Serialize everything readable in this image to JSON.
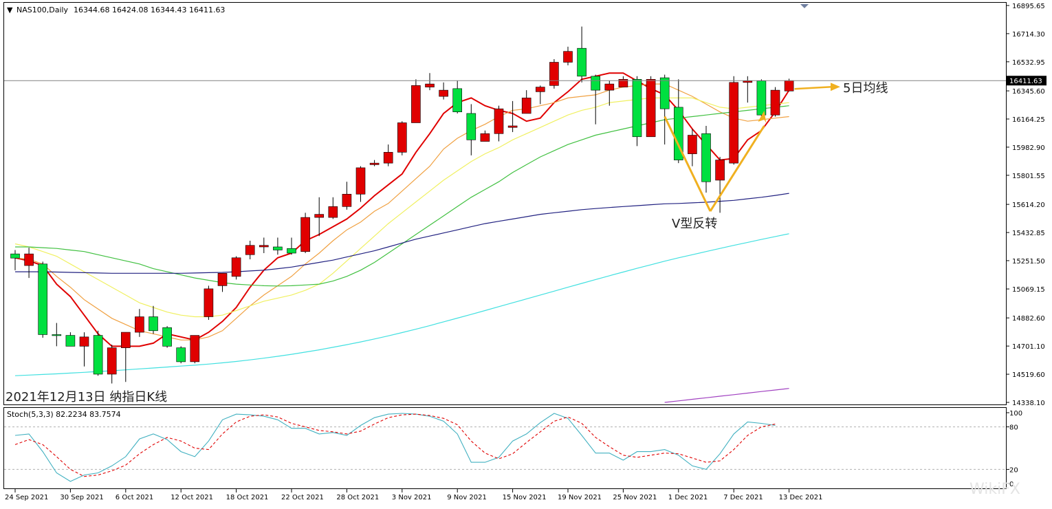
{
  "header": {
    "symbol": "NAS100,Daily",
    "ohlc": "16344.68 16424.08 16344.43 16411.63"
  },
  "annotations": {
    "ma_label": "5日均线",
    "reversal_label": "V型反转",
    "caption": "2021年12月13日 纳指日K线",
    "watermark": "WikiFX"
  },
  "colors": {
    "bull": "#00e040",
    "bear": "#e00000",
    "ma5": "#e00000",
    "ma10": "#f0a040",
    "ma20": "#f0f060",
    "ma50": "#40c040",
    "ma100": "#202080",
    "ma200": "#40e0e0",
    "ma_long": "#a040c0",
    "arrow": "#f0b020",
    "stoch_main": "#40b0c0",
    "stoch_signal": "#e00000"
  },
  "chart_data": [
    {
      "type": "candlestick",
      "title": "NAS100,Daily",
      "ylim": [
        14338.18,
        16895.65
      ],
      "y_ticks": [
        "16895.65",
        "16714.30",
        "16532.95",
        "16345.60",
        "16164.25",
        "15982.90",
        "15801.55",
        "15614.20",
        "15432.85",
        "15251.50",
        "15069.15",
        "14882.60",
        "14701.10",
        "14519.60",
        "14338.10"
      ],
      "current_price": "16411.63",
      "x_labels": [
        "24 Sep 2021",
        "30 Sep 2021",
        "6 Oct 2021",
        "12 Oct 2021",
        "18 Oct 2021",
        "22 Oct 2021",
        "28 Oct 2021",
        "3 Nov 2021",
        "9 Nov 2021",
        "15 Nov 2021",
        "19 Nov 2021",
        "25 Nov 2021",
        "1 Dec 2021",
        "7 Dec 2021",
        "13 Dec 2021"
      ],
      "candles": [
        {
          "o": 15295,
          "h": 15320,
          "l": 15190,
          "c": 15268
        },
        {
          "o": 15220,
          "h": 15335,
          "l": 15140,
          "c": 15295
        },
        {
          "o": 15230,
          "h": 15245,
          "l": 14755,
          "c": 14775
        },
        {
          "o": 14775,
          "h": 14850,
          "l": 14700,
          "c": 14770
        },
        {
          "o": 14770,
          "h": 14790,
          "l": 14700,
          "c": 14700
        },
        {
          "o": 14700,
          "h": 14790,
          "l": 14570,
          "c": 14760
        },
        {
          "o": 14770,
          "h": 14800,
          "l": 14510,
          "c": 14520
        },
        {
          "o": 14520,
          "h": 14710,
          "l": 14460,
          "c": 14690
        },
        {
          "o": 14690,
          "h": 14790,
          "l": 14470,
          "c": 14790
        },
        {
          "o": 14790,
          "h": 14940,
          "l": 14760,
          "c": 14890
        },
        {
          "o": 14890,
          "h": 14960,
          "l": 14780,
          "c": 14800
        },
        {
          "o": 14820,
          "h": 14830,
          "l": 14690,
          "c": 14700
        },
        {
          "o": 14690,
          "h": 14700,
          "l": 14590,
          "c": 14600
        },
        {
          "o": 14600,
          "h": 14770,
          "l": 14590,
          "c": 14770
        },
        {
          "o": 14890,
          "h": 15090,
          "l": 14870,
          "c": 15070
        },
        {
          "o": 15090,
          "h": 15170,
          "l": 15050,
          "c": 15170
        },
        {
          "o": 15150,
          "h": 15280,
          "l": 15130,
          "c": 15270
        },
        {
          "o": 15290,
          "h": 15380,
          "l": 15260,
          "c": 15350
        },
        {
          "o": 15340,
          "h": 15400,
          "l": 15300,
          "c": 15350
        },
        {
          "o": 15340,
          "h": 15400,
          "l": 15290,
          "c": 15320
        },
        {
          "o": 15330,
          "h": 15400,
          "l": 15290,
          "c": 15300
        },
        {
          "o": 15310,
          "h": 15560,
          "l": 15300,
          "c": 15530
        },
        {
          "o": 15530,
          "h": 15660,
          "l": 15410,
          "c": 15550
        },
        {
          "o": 15530,
          "h": 15660,
          "l": 15520,
          "c": 15600
        },
        {
          "o": 15600,
          "h": 15760,
          "l": 15580,
          "c": 15680
        },
        {
          "o": 15680,
          "h": 15860,
          "l": 15630,
          "c": 15850
        },
        {
          "o": 15870,
          "h": 15900,
          "l": 15860,
          "c": 15880
        },
        {
          "o": 15880,
          "h": 16000,
          "l": 15860,
          "c": 15950
        },
        {
          "o": 15950,
          "h": 16150,
          "l": 15930,
          "c": 16140
        },
        {
          "o": 16140,
          "h": 16420,
          "l": 16140,
          "c": 16380
        },
        {
          "o": 16370,
          "h": 16460,
          "l": 16350,
          "c": 16390
        },
        {
          "o": 16310,
          "h": 16400,
          "l": 16290,
          "c": 16350
        },
        {
          "o": 16360,
          "h": 16410,
          "l": 16200,
          "c": 16210
        },
        {
          "o": 16200,
          "h": 16260,
          "l": 15930,
          "c": 16030
        },
        {
          "o": 16020,
          "h": 16090,
          "l": 16020,
          "c": 16070
        },
        {
          "o": 16070,
          "h": 16250,
          "l": 16020,
          "c": 16230
        },
        {
          "o": 16110,
          "h": 16280,
          "l": 16080,
          "c": 16120
        },
        {
          "o": 16200,
          "h": 16350,
          "l": 16200,
          "c": 16300
        },
        {
          "o": 16340,
          "h": 16380,
          "l": 16260,
          "c": 16370
        },
        {
          "o": 16380,
          "h": 16550,
          "l": 16360,
          "c": 16530
        },
        {
          "o": 16530,
          "h": 16630,
          "l": 16510,
          "c": 16600
        },
        {
          "o": 16620,
          "h": 16760,
          "l": 16400,
          "c": 16440
        },
        {
          "o": 16440,
          "h": 16450,
          "l": 16130,
          "c": 16350
        },
        {
          "o": 16350,
          "h": 16410,
          "l": 16250,
          "c": 16390
        },
        {
          "o": 16370,
          "h": 16440,
          "l": 16370,
          "c": 16420
        },
        {
          "o": 16420,
          "h": 16440,
          "l": 15990,
          "c": 16050
        },
        {
          "o": 16050,
          "h": 16440,
          "l": 16050,
          "c": 16420
        },
        {
          "o": 16430,
          "h": 16450,
          "l": 16000,
          "c": 16230
        },
        {
          "o": 16240,
          "h": 16420,
          "l": 15880,
          "c": 15900
        },
        {
          "o": 15940,
          "h": 16100,
          "l": 15860,
          "c": 16060
        },
        {
          "o": 16070,
          "h": 16120,
          "l": 15690,
          "c": 15760
        },
        {
          "o": 15770,
          "h": 15920,
          "l": 15560,
          "c": 15900
        },
        {
          "o": 15880,
          "h": 16440,
          "l": 15870,
          "c": 16400
        },
        {
          "o": 16400,
          "h": 16440,
          "l": 16270,
          "c": 16410
        },
        {
          "o": 16410,
          "h": 16420,
          "l": 16170,
          "c": 16190
        },
        {
          "o": 16190,
          "h": 16370,
          "l": 16180,
          "c": 16350
        },
        {
          "o": 16344.68,
          "h": 16424.08,
          "l": 16344.43,
          "c": 16411.63
        }
      ],
      "series": [
        {
          "id": "ma5",
          "values": [
            15270,
            15250,
            15220,
            15100,
            15020,
            14900,
            14780,
            14700,
            14700,
            14700,
            14720,
            14780,
            14760,
            14740,
            14790,
            14860,
            14950,
            15080,
            15190,
            15270,
            15300,
            15380,
            15420,
            15470,
            15520,
            15590,
            15670,
            15740,
            15810,
            15950,
            16070,
            16200,
            16270,
            16300,
            16250,
            16220,
            16200,
            16150,
            16170,
            16270,
            16340,
            16420,
            16440,
            16460,
            16460,
            16410,
            16360,
            16320,
            16220,
            16100,
            16000,
            15900,
            15910,
            16030,
            16090,
            16210,
            16350
          ]
        },
        {
          "id": "ma10",
          "values": [
            15270,
            15260,
            15230,
            15150,
            15080,
            15000,
            14940,
            14880,
            14840,
            14800,
            14780,
            14760,
            14740,
            14740,
            14760,
            14800,
            14880,
            14960,
            15030,
            15090,
            15150,
            15230,
            15300,
            15380,
            15450,
            15500,
            15570,
            15620,
            15700,
            15780,
            15860,
            15970,
            16040,
            16090,
            16130,
            16180,
            16220,
            16230,
            16250,
            16270,
            16300,
            16310,
            16320,
            16350,
            16370,
            16380,
            16390,
            16390,
            16350,
            16310,
            16260,
            16210,
            16170,
            16150,
            16160,
            16170,
            16180
          ]
        },
        {
          "id": "ma20",
          "values": [
            15360,
            15340,
            15310,
            15280,
            15230,
            15180,
            15130,
            15080,
            15030,
            14980,
            14950,
            14920,
            14900,
            14890,
            14890,
            14900,
            14930,
            14960,
            14990,
            15010,
            15030,
            15060,
            15100,
            15170,
            15250,
            15330,
            15410,
            15490,
            15560,
            15630,
            15700,
            15770,
            15830,
            15890,
            15940,
            15980,
            16030,
            16070,
            16110,
            16150,
            16190,
            16220,
            16240,
            16270,
            16280,
            16290,
            16300,
            16300,
            16300,
            16300,
            16270,
            16240,
            16230,
            16240,
            16250,
            16260,
            16270
          ]
        },
        {
          "id": "ma50",
          "values": [
            15340,
            15340,
            15335,
            15330,
            15320,
            15310,
            15290,
            15270,
            15250,
            15230,
            15200,
            15180,
            15160,
            15140,
            15125,
            15110,
            15100,
            15095,
            15090,
            15088,
            15090,
            15095,
            15100,
            15120,
            15150,
            15190,
            15240,
            15300,
            15360,
            15420,
            15480,
            15540,
            15600,
            15660,
            15710,
            15760,
            15820,
            15870,
            15920,
            15960,
            16000,
            16030,
            16060,
            16080,
            16100,
            16120,
            16140,
            16160,
            16170,
            16180,
            16190,
            16200,
            16210,
            16220,
            16230,
            16240,
            16250
          ]
        },
        {
          "id": "ma100",
          "values": [
            15180,
            15180,
            15180,
            15178,
            15176,
            15174,
            15172,
            15170,
            15170,
            15170,
            15170,
            15170,
            15170,
            15172,
            15174,
            15176,
            15180,
            15185,
            15190,
            15200,
            15210,
            15225,
            15240,
            15255,
            15275,
            15295,
            15315,
            15340,
            15365,
            15390,
            15410,
            15430,
            15450,
            15470,
            15490,
            15505,
            15520,
            15535,
            15550,
            15560,
            15570,
            15580,
            15587,
            15594,
            15600,
            15606,
            15612,
            15618,
            15620,
            15624,
            15628,
            15634,
            15640,
            15650,
            15660,
            15672,
            15685
          ]
        },
        {
          "id": "ma200",
          "values": [
            14510,
            14514,
            14518,
            14522,
            14527,
            14532,
            14537,
            14542,
            14548,
            14554,
            14560,
            14566,
            14572,
            14578,
            14585,
            14593,
            14602,
            14612,
            14623,
            14635,
            14648,
            14662,
            14677,
            14693,
            14710,
            14728,
            14747,
            14767,
            14788,
            14810,
            14833,
            14857,
            14881,
            14905,
            14930,
            14955,
            14980,
            15005,
            15030,
            15055,
            15080,
            15105,
            15130,
            15154,
            15178,
            15202,
            15225,
            15248,
            15270,
            15290,
            15310,
            15330,
            15350,
            15369,
            15388,
            15407,
            15425
          ]
        },
        {
          "id": "ma_long",
          "values": [
            null,
            null,
            null,
            null,
            null,
            null,
            null,
            null,
            null,
            null,
            null,
            null,
            null,
            null,
            null,
            null,
            null,
            null,
            null,
            null,
            null,
            null,
            null,
            null,
            null,
            null,
            null,
            null,
            null,
            null,
            null,
            null,
            null,
            null,
            null,
            null,
            null,
            null,
            null,
            null,
            null,
            null,
            null,
            null,
            null,
            null,
            null,
            14338,
            14348,
            14358,
            14368,
            14378,
            14388,
            14398,
            14408,
            14418,
            14428
          ]
        }
      ]
    },
    {
      "type": "line",
      "title": "Stoch(5,3,3) 82.2234 83.7574",
      "ylim": [
        0,
        100
      ],
      "y_ticks": [
        "100",
        "80",
        "20",
        "0"
      ],
      "levels": [
        80,
        20
      ],
      "series": [
        {
          "name": "main",
          "values": [
            68,
            70,
            45,
            15,
            3,
            12,
            15,
            25,
            38,
            63,
            70,
            62,
            45,
            38,
            60,
            90,
            98,
            97,
            95,
            90,
            78,
            78,
            70,
            72,
            68,
            82,
            93,
            98,
            99,
            98,
            95,
            88,
            70,
            30,
            30,
            37,
            60,
            70,
            86,
            99,
            92,
            68,
            43,
            43,
            33,
            45,
            45,
            48,
            40,
            25,
            20,
            42,
            70,
            87,
            85,
            82
          ]
        },
        {
          "name": "signal",
          "values": [
            55,
            62,
            55,
            38,
            20,
            10,
            12,
            18,
            26,
            42,
            55,
            65,
            60,
            50,
            48,
            70,
            87,
            95,
            97,
            94,
            85,
            80,
            75,
            73,
            70,
            74,
            84,
            93,
            97,
            98,
            96,
            92,
            83,
            60,
            43,
            35,
            42,
            58,
            73,
            88,
            94,
            85,
            65,
            52,
            40,
            37,
            40,
            43,
            42,
            36,
            30,
            32,
            48,
            68,
            80,
            84
          ]
        }
      ]
    }
  ]
}
